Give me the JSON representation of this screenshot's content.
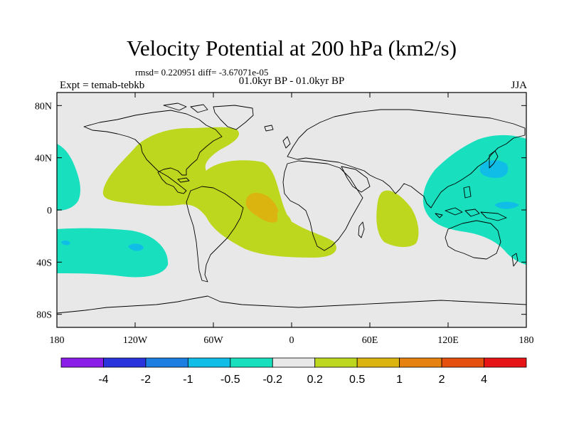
{
  "title": "Velocity Potential at 200 hPa (km2/s)",
  "stats": "rmsd= 0.220951 diff= -3.67071e-05",
  "experiment": "Expt = temab-tebkb",
  "comparison": "01.0kyr BP - 01.0kyr BP",
  "season": "JJA",
  "map": {
    "lat_ticks": [
      {
        "value": 80,
        "label": "80N"
      },
      {
        "value": 40,
        "label": "40N"
      },
      {
        "value": 0,
        "label": "0"
      },
      {
        "value": -40,
        "label": "40S"
      },
      {
        "value": -80,
        "label": "80S"
      }
    ],
    "lon_ticks": [
      {
        "value": -180,
        "label": "180"
      },
      {
        "value": -120,
        "label": "120W"
      },
      {
        "value": -60,
        "label": "60W"
      },
      {
        "value": 0,
        "label": "0"
      },
      {
        "value": 60,
        "label": "60E"
      },
      {
        "value": 120,
        "label": "120E"
      },
      {
        "value": 180,
        "label": "180"
      }
    ],
    "background_color": "#e8e8e8"
  },
  "colorbar": {
    "colors": [
      "#8b1de8",
      "#2a34dc",
      "#1a7fe0",
      "#0fbde6",
      "#18e0bf",
      "#e8e8e8",
      "#bcd71d",
      "#dcb40f",
      "#e6820f",
      "#e6500f",
      "#e61414"
    ],
    "labels": [
      "-4",
      "-2",
      "-1",
      "-0.5",
      "-0.2",
      "0.2",
      "0.5",
      "1",
      "2",
      "4"
    ]
  },
  "regions": [
    {
      "name": "tropical-atlantic-positive",
      "level": "0.2 to 0.5",
      "color": "#bcd71d"
    },
    {
      "name": "west-african-positive",
      "level": "0.2 to 0.5",
      "color": "#bcd71d"
    },
    {
      "name": "south-atlantic-maximum",
      "level": "0.5 to 1",
      "color": "#dcb40f"
    },
    {
      "name": "indian-ocean-positive",
      "level": "0.2 to 0.5",
      "color": "#bcd71d"
    },
    {
      "name": "west-pacific-negative",
      "level": "-0.5 to -0.2",
      "color": "#18e0bf"
    },
    {
      "name": "west-pacific-minimum",
      "level": "-1 to -0.5",
      "color": "#0fbde6"
    },
    {
      "name": "south-pacific-negative",
      "level": "-0.5 to -0.2",
      "color": "#18e0bf"
    },
    {
      "name": "east-pacific-negative",
      "level": "-0.5 to -0.2",
      "color": "#18e0bf"
    }
  ]
}
